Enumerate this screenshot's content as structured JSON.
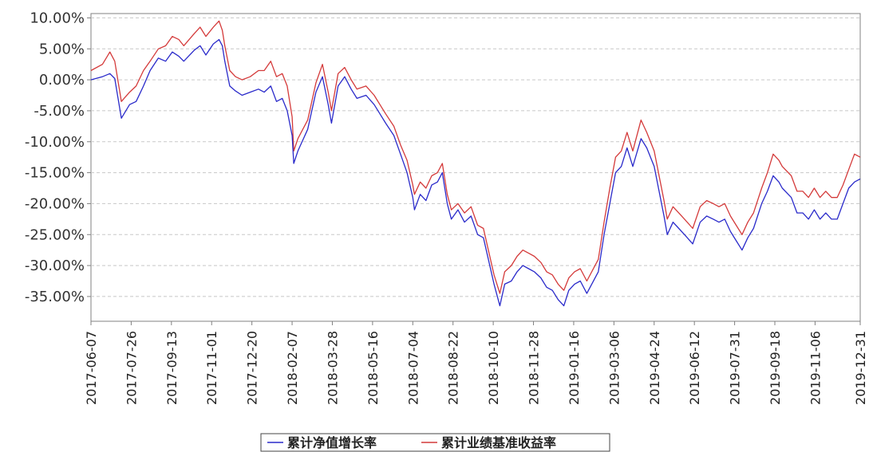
{
  "chart_data": {
    "type": "line",
    "title": "",
    "xlabel": "",
    "ylabel": "",
    "y_unit": "%",
    "ylim": [
      -39,
      10.7
    ],
    "y_ticks": [
      10,
      5,
      0,
      -5,
      -10,
      -15,
      -20,
      -25,
      -30,
      -35
    ],
    "y_tick_labels": [
      "10.00%",
      "5.00%",
      "0.00%",
      "-5.00%",
      "-10.00%",
      "-15.00%",
      "-20.00%",
      "-25.00%",
      "-30.00%",
      "-35.00%"
    ],
    "x_tick_labels": [
      "2017-06-07",
      "2017-07-26",
      "2017-09-13",
      "2017-11-01",
      "2017-12-20",
      "2018-02-07",
      "2018-03-28",
      "2018-05-16",
      "2018-07-04",
      "2018-08-22",
      "2018-10-10",
      "2018-11-28",
      "2019-01-16",
      "2019-03-06",
      "2019-04-24",
      "2019-06-12",
      "2019-07-31",
      "2019-09-18",
      "2019-11-06",
      "2019-12-31"
    ],
    "grid": true,
    "legend_position": "bottom-center",
    "series": [
      {
        "name": "累计净值增长率",
        "color": "#2a2aca",
        "points": [
          [
            "2017-06-07",
            0.0
          ],
          [
            "2017-06-21",
            0.5
          ],
          [
            "2017-06-30",
            1.0
          ],
          [
            "2017-07-06",
            0.2
          ],
          [
            "2017-07-14",
            -6.2
          ],
          [
            "2017-07-24",
            -4.0
          ],
          [
            "2017-08-01",
            -3.5
          ],
          [
            "2017-08-10",
            -1.0
          ],
          [
            "2017-08-18",
            1.5
          ],
          [
            "2017-08-28",
            3.5
          ],
          [
            "2017-09-06",
            3.0
          ],
          [
            "2017-09-14",
            4.5
          ],
          [
            "2017-09-22",
            3.8
          ],
          [
            "2017-09-28",
            3.0
          ],
          [
            "2017-10-11",
            4.8
          ],
          [
            "2017-10-18",
            5.5
          ],
          [
            "2017-10-25",
            4.0
          ],
          [
            "2017-11-03",
            5.8
          ],
          [
            "2017-11-10",
            6.5
          ],
          [
            "2017-11-14",
            5.5
          ],
          [
            "2017-11-17",
            3.0
          ],
          [
            "2017-11-23",
            -1.0
          ],
          [
            "2017-11-30",
            -1.8
          ],
          [
            "2017-12-08",
            -2.5
          ],
          [
            "2017-12-18",
            -2.0
          ],
          [
            "2017-12-28",
            -1.5
          ],
          [
            "2018-01-04",
            -2.0
          ],
          [
            "2018-01-12",
            -1.0
          ],
          [
            "2018-01-19",
            -3.5
          ],
          [
            "2018-01-26",
            -3.0
          ],
          [
            "2018-02-01",
            -5.0
          ],
          [
            "2018-02-07",
            -9.0
          ],
          [
            "2018-02-09",
            -13.5
          ],
          [
            "2018-02-14",
            -11.5
          ],
          [
            "2018-02-26",
            -8.0
          ],
          [
            "2018-03-08",
            -2.0
          ],
          [
            "2018-03-16",
            0.5
          ],
          [
            "2018-03-23",
            -4.0
          ],
          [
            "2018-03-27",
            -7.0
          ],
          [
            "2018-04-04",
            -1.0
          ],
          [
            "2018-04-12",
            0.5
          ],
          [
            "2018-04-20",
            -1.5
          ],
          [
            "2018-04-27",
            -3.0
          ],
          [
            "2018-05-08",
            -2.5
          ],
          [
            "2018-05-18",
            -4.0
          ],
          [
            "2018-05-25",
            -5.5
          ],
          [
            "2018-06-01",
            -7.0
          ],
          [
            "2018-06-11",
            -9.0
          ],
          [
            "2018-06-19",
            -12.0
          ],
          [
            "2018-06-27",
            -15.0
          ],
          [
            "2018-07-04",
            -19.0
          ],
          [
            "2018-07-06",
            -21.0
          ],
          [
            "2018-07-13",
            -18.5
          ],
          [
            "2018-07-20",
            -19.5
          ],
          [
            "2018-07-27",
            -17.0
          ],
          [
            "2018-08-03",
            -16.5
          ],
          [
            "2018-08-09",
            -15.0
          ],
          [
            "2018-08-15",
            -20.0
          ],
          [
            "2018-08-20",
            -22.5
          ],
          [
            "2018-08-28",
            -21.0
          ],
          [
            "2018-09-05",
            -23.0
          ],
          [
            "2018-09-13",
            -22.0
          ],
          [
            "2018-09-21",
            -25.0
          ],
          [
            "2018-09-28",
            -25.5
          ],
          [
            "2018-10-11",
            -33.0
          ],
          [
            "2018-10-18",
            -36.5
          ],
          [
            "2018-10-24",
            -33.0
          ],
          [
            "2018-11-01",
            -32.5
          ],
          [
            "2018-11-08",
            -31.0
          ],
          [
            "2018-11-15",
            -30.0
          ],
          [
            "2018-11-22",
            -30.5
          ],
          [
            "2018-11-29",
            -31.0
          ],
          [
            "2018-12-07",
            -32.0
          ],
          [
            "2018-12-14",
            -33.5
          ],
          [
            "2018-12-21",
            -34.0
          ],
          [
            "2018-12-28",
            -35.5
          ],
          [
            "2019-01-04",
            -36.5
          ],
          [
            "2019-01-10",
            -34.0
          ],
          [
            "2019-01-17",
            -33.0
          ],
          [
            "2019-01-24",
            -32.5
          ],
          [
            "2019-02-01",
            -34.5
          ],
          [
            "2019-02-15",
            -31.0
          ],
          [
            "2019-02-22",
            -25.0
          ],
          [
            "2019-03-01",
            -20.0
          ],
          [
            "2019-03-08",
            -15.0
          ],
          [
            "2019-03-15",
            -14.0
          ],
          [
            "2019-03-22",
            -11.0
          ],
          [
            "2019-03-29",
            -14.0
          ],
          [
            "2019-04-08",
            -9.5
          ],
          [
            "2019-04-15",
            -11.0
          ],
          [
            "2019-04-24",
            -14.0
          ],
          [
            "2019-05-06",
            -22.0
          ],
          [
            "2019-05-10",
            -25.0
          ],
          [
            "2019-05-17",
            -23.0
          ],
          [
            "2019-05-24",
            -24.0
          ],
          [
            "2019-05-31",
            -25.0
          ],
          [
            "2019-06-10",
            -26.5
          ],
          [
            "2019-06-19",
            -23.0
          ],
          [
            "2019-06-27",
            -22.0
          ],
          [
            "2019-07-05",
            -22.5
          ],
          [
            "2019-07-12",
            -23.0
          ],
          [
            "2019-07-19",
            -22.5
          ],
          [
            "2019-07-26",
            -24.5
          ],
          [
            "2019-08-02",
            -26.0
          ],
          [
            "2019-08-09",
            -27.5
          ],
          [
            "2019-08-16",
            -25.5
          ],
          [
            "2019-08-23",
            -24.0
          ],
          [
            "2019-09-02",
            -20.0
          ],
          [
            "2019-09-09",
            -18.0
          ],
          [
            "2019-09-16",
            -15.5
          ],
          [
            "2019-09-23",
            -16.5
          ],
          [
            "2019-09-27",
            -17.5
          ],
          [
            "2019-10-08",
            -19.0
          ],
          [
            "2019-10-15",
            -21.5
          ],
          [
            "2019-10-22",
            -21.5
          ],
          [
            "2019-10-29",
            -22.5
          ],
          [
            "2019-11-05",
            -21.0
          ],
          [
            "2019-11-12",
            -22.5
          ],
          [
            "2019-11-19",
            -21.5
          ],
          [
            "2019-11-26",
            -22.5
          ],
          [
            "2019-12-03",
            -22.5
          ],
          [
            "2019-12-10",
            -20.0
          ],
          [
            "2019-12-17",
            -17.5
          ],
          [
            "2019-12-24",
            -16.5
          ],
          [
            "2019-12-31",
            -16.0
          ]
        ]
      },
      {
        "name": "累计业绩基准收益率",
        "color": "#d43a3a",
        "points": [
          [
            "2017-06-07",
            1.5
          ],
          [
            "2017-06-21",
            2.5
          ],
          [
            "2017-06-30",
            4.5
          ],
          [
            "2017-07-06",
            3.0
          ],
          [
            "2017-07-14",
            -3.5
          ],
          [
            "2017-07-24",
            -2.0
          ],
          [
            "2017-08-01",
            -1.0
          ],
          [
            "2017-08-10",
            1.5
          ],
          [
            "2017-08-18",
            3.0
          ],
          [
            "2017-08-28",
            5.0
          ],
          [
            "2017-09-06",
            5.5
          ],
          [
            "2017-09-14",
            7.0
          ],
          [
            "2017-09-22",
            6.5
          ],
          [
            "2017-09-28",
            5.5
          ],
          [
            "2017-10-11",
            7.5
          ],
          [
            "2017-10-18",
            8.5
          ],
          [
            "2017-10-25",
            7.0
          ],
          [
            "2017-11-03",
            8.5
          ],
          [
            "2017-11-10",
            9.5
          ],
          [
            "2017-11-14",
            8.0
          ],
          [
            "2017-11-17",
            5.5
          ],
          [
            "2017-11-23",
            1.5
          ],
          [
            "2017-11-30",
            0.5
          ],
          [
            "2017-12-08",
            0.0
          ],
          [
            "2017-12-18",
            0.5
          ],
          [
            "2017-12-28",
            1.5
          ],
          [
            "2018-01-04",
            1.5
          ],
          [
            "2018-01-12",
            3.0
          ],
          [
            "2018-01-19",
            0.5
          ],
          [
            "2018-01-26",
            1.0
          ],
          [
            "2018-02-01",
            -1.0
          ],
          [
            "2018-02-07",
            -6.0
          ],
          [
            "2018-02-09",
            -11.5
          ],
          [
            "2018-02-14",
            -9.5
          ],
          [
            "2018-02-26",
            -6.5
          ],
          [
            "2018-03-08",
            -0.5
          ],
          [
            "2018-03-16",
            2.5
          ],
          [
            "2018-03-23",
            -2.0
          ],
          [
            "2018-03-27",
            -5.0
          ],
          [
            "2018-04-04",
            1.0
          ],
          [
            "2018-04-12",
            2.0
          ],
          [
            "2018-04-20",
            0.0
          ],
          [
            "2018-04-27",
            -1.5
          ],
          [
            "2018-05-08",
            -1.0
          ],
          [
            "2018-05-18",
            -2.5
          ],
          [
            "2018-05-25",
            -4.0
          ],
          [
            "2018-06-01",
            -5.5
          ],
          [
            "2018-06-11",
            -7.5
          ],
          [
            "2018-06-19",
            -10.5
          ],
          [
            "2018-06-27",
            -13.0
          ],
          [
            "2018-07-04",
            -17.0
          ],
          [
            "2018-07-06",
            -18.5
          ],
          [
            "2018-07-13",
            -16.5
          ],
          [
            "2018-07-20",
            -17.5
          ],
          [
            "2018-07-27",
            -15.5
          ],
          [
            "2018-08-03",
            -15.0
          ],
          [
            "2018-08-09",
            -13.5
          ],
          [
            "2018-08-15",
            -18.5
          ],
          [
            "2018-08-20",
            -21.0
          ],
          [
            "2018-08-28",
            -20.0
          ],
          [
            "2018-09-05",
            -21.5
          ],
          [
            "2018-09-13",
            -20.5
          ],
          [
            "2018-09-21",
            -23.5
          ],
          [
            "2018-09-28",
            -24.0
          ],
          [
            "2018-10-11",
            -31.5
          ],
          [
            "2018-10-18",
            -34.5
          ],
          [
            "2018-10-24",
            -31.0
          ],
          [
            "2018-11-01",
            -30.0
          ],
          [
            "2018-11-08",
            -28.5
          ],
          [
            "2018-11-15",
            -27.5
          ],
          [
            "2018-11-22",
            -28.0
          ],
          [
            "2018-11-29",
            -28.5
          ],
          [
            "2018-12-07",
            -29.5
          ],
          [
            "2018-12-14",
            -31.0
          ],
          [
            "2018-12-21",
            -31.5
          ],
          [
            "2018-12-28",
            -33.0
          ],
          [
            "2019-01-04",
            -34.0
          ],
          [
            "2019-01-10",
            -32.0
          ],
          [
            "2019-01-17",
            -31.0
          ],
          [
            "2019-01-24",
            -30.5
          ],
          [
            "2019-02-01",
            -32.5
          ],
          [
            "2019-02-15",
            -29.0
          ],
          [
            "2019-02-22",
            -23.0
          ],
          [
            "2019-03-01",
            -17.5
          ],
          [
            "2019-03-08",
            -12.5
          ],
          [
            "2019-03-15",
            -11.5
          ],
          [
            "2019-03-22",
            -8.5
          ],
          [
            "2019-03-29",
            -11.5
          ],
          [
            "2019-04-08",
            -6.5
          ],
          [
            "2019-04-15",
            -8.5
          ],
          [
            "2019-04-24",
            -11.5
          ],
          [
            "2019-05-06",
            -19.5
          ],
          [
            "2019-05-10",
            -22.5
          ],
          [
            "2019-05-17",
            -20.5
          ],
          [
            "2019-05-24",
            -21.5
          ],
          [
            "2019-05-31",
            -22.5
          ],
          [
            "2019-06-10",
            -24.0
          ],
          [
            "2019-06-19",
            -20.5
          ],
          [
            "2019-06-27",
            -19.5
          ],
          [
            "2019-07-05",
            -20.0
          ],
          [
            "2019-07-12",
            -20.5
          ],
          [
            "2019-07-19",
            -20.0
          ],
          [
            "2019-07-26",
            -22.0
          ],
          [
            "2019-08-02",
            -23.5
          ],
          [
            "2019-08-09",
            -25.0
          ],
          [
            "2019-08-16",
            -23.0
          ],
          [
            "2019-08-23",
            -21.5
          ],
          [
            "2019-09-02",
            -17.5
          ],
          [
            "2019-09-09",
            -15.0
          ],
          [
            "2019-09-16",
            -12.0
          ],
          [
            "2019-09-23",
            -13.0
          ],
          [
            "2019-09-27",
            -14.0
          ],
          [
            "2019-10-08",
            -15.5
          ],
          [
            "2019-10-15",
            -18.0
          ],
          [
            "2019-10-22",
            -18.0
          ],
          [
            "2019-10-29",
            -19.0
          ],
          [
            "2019-11-05",
            -17.5
          ],
          [
            "2019-11-12",
            -19.0
          ],
          [
            "2019-11-19",
            -18.0
          ],
          [
            "2019-11-26",
            -19.0
          ],
          [
            "2019-12-03",
            -19.0
          ],
          [
            "2019-12-10",
            -17.0
          ],
          [
            "2019-12-17",
            -14.5
          ],
          [
            "2019-12-24",
            -12.0
          ],
          [
            "2019-12-31",
            -12.5
          ]
        ]
      }
    ]
  }
}
